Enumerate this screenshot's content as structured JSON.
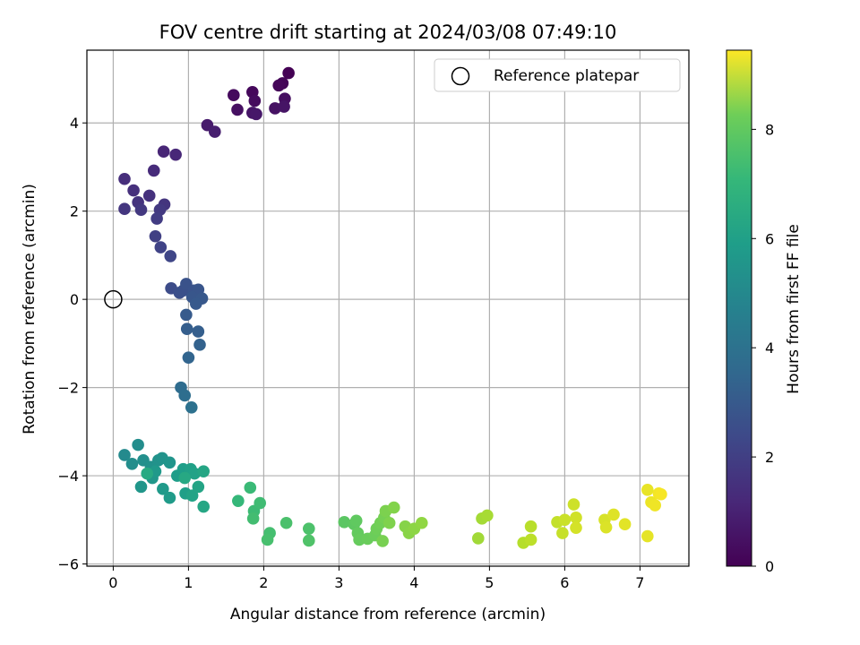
{
  "chart_data": {
    "type": "scatter",
    "title": "FOV centre drift starting at 2024/03/08 07:49:10",
    "xlabel": "Angular distance from reference (arcmin)",
    "ylabel": "Rotation from reference (arcmin)",
    "xlim": [
      -0.35,
      7.65
    ],
    "ylim": [
      -6.05,
      5.65
    ],
    "xticks": [
      0,
      1,
      2,
      3,
      4,
      5,
      6,
      7
    ],
    "xtick_labels": [
      "0",
      "1",
      "2",
      "3",
      "4",
      "5",
      "6",
      "7"
    ],
    "yticks": [
      -6,
      -4,
      -2,
      0,
      2,
      4
    ],
    "ytick_labels": [
      "−6",
      "−4",
      "−2",
      "0",
      "2",
      "4"
    ],
    "grid": true,
    "legend": {
      "position": "top-right",
      "entries": [
        "Reference platepar"
      ]
    },
    "reference_point": {
      "x": 0,
      "y": 0,
      "label": "Reference platepar"
    },
    "colorbar": {
      "label": "Hours from first FF file",
      "range": [
        0,
        9.45
      ],
      "ticks": [
        0,
        2,
        4,
        6,
        8
      ],
      "tick_labels": [
        "0",
        "2",
        "4",
        "6",
        "8"
      ],
      "colormap": "viridis"
    },
    "points": [
      [
        2.33,
        5.13,
        0.0
      ],
      [
        2.25,
        4.9,
        0.1
      ],
      [
        2.2,
        4.85,
        0.15
      ],
      [
        1.85,
        4.7,
        0.2
      ],
      [
        1.6,
        4.63,
        0.25
      ],
      [
        1.88,
        4.5,
        0.3
      ],
      [
        2.28,
        4.55,
        0.35
      ],
      [
        1.65,
        4.3,
        0.4
      ],
      [
        2.15,
        4.33,
        0.45
      ],
      [
        2.27,
        4.37,
        0.5
      ],
      [
        1.85,
        4.23,
        0.55
      ],
      [
        1.9,
        4.2,
        0.6
      ],
      [
        1.25,
        3.95,
        0.7
      ],
      [
        1.35,
        3.8,
        0.8
      ],
      [
        0.67,
        3.35,
        1.0
      ],
      [
        0.83,
        3.28,
        1.05
      ],
      [
        0.54,
        2.92,
        1.15
      ],
      [
        0.15,
        2.73,
        1.25
      ],
      [
        0.27,
        2.47,
        1.3
      ],
      [
        0.48,
        2.35,
        1.35
      ],
      [
        0.33,
        2.2,
        1.4
      ],
      [
        0.68,
        2.15,
        1.45
      ],
      [
        0.15,
        2.05,
        1.5
      ],
      [
        0.37,
        2.03,
        1.55
      ],
      [
        0.62,
        2.03,
        1.6
      ],
      [
        0.58,
        1.83,
        1.7
      ],
      [
        0.56,
        1.43,
        1.8
      ],
      [
        0.63,
        1.18,
        1.9
      ],
      [
        0.76,
        0.98,
        2.0
      ],
      [
        0.77,
        0.25,
        2.2
      ],
      [
        0.88,
        0.15,
        2.3
      ],
      [
        0.93,
        0.2,
        2.35
      ],
      [
        0.97,
        0.35,
        2.4
      ],
      [
        1.07,
        0.2,
        2.45
      ],
      [
        1.13,
        0.22,
        2.5
      ],
      [
        1.05,
        0.05,
        2.55
      ],
      [
        1.18,
        0.02,
        2.6
      ],
      [
        1.1,
        -0.1,
        2.65
      ],
      [
        0.97,
        -0.35,
        2.7
      ],
      [
        0.98,
        -0.67,
        2.8
      ],
      [
        1.13,
        -0.73,
        2.85
      ],
      [
        1.15,
        -1.03,
        2.95
      ],
      [
        1.0,
        -1.32,
        3.05
      ],
      [
        0.9,
        -2.0,
        3.3
      ],
      [
        0.95,
        -2.18,
        3.4
      ],
      [
        1.04,
        -2.45,
        3.5
      ],
      [
        0.15,
        -3.53,
        4.5
      ],
      [
        0.33,
        -3.3,
        4.6
      ],
      [
        0.25,
        -3.73,
        4.65
      ],
      [
        0.4,
        -3.65,
        4.7
      ],
      [
        0.5,
        -3.8,
        4.75
      ],
      [
        0.6,
        -3.65,
        4.8
      ],
      [
        0.65,
        -3.6,
        4.85
      ],
      [
        0.75,
        -3.7,
        4.9
      ],
      [
        0.37,
        -4.25,
        4.95
      ],
      [
        0.52,
        -4.05,
        5.0
      ],
      [
        0.56,
        -3.9,
        5.05
      ],
      [
        0.66,
        -4.3,
        5.1
      ],
      [
        0.75,
        -4.5,
        5.15
      ],
      [
        0.85,
        -4.0,
        5.2
      ],
      [
        0.93,
        -3.85,
        5.25
      ],
      [
        0.96,
        -4.4,
        5.3
      ],
      [
        1.03,
        -3.85,
        5.35
      ],
      [
        1.08,
        -3.95,
        5.4
      ],
      [
        1.05,
        -4.45,
        5.45
      ],
      [
        1.13,
        -4.25,
        5.5
      ],
      [
        1.2,
        -3.9,
        5.55
      ],
      [
        1.2,
        -4.7,
        5.6
      ],
      [
        0.95,
        -4.05,
        5.65
      ],
      [
        0.45,
        -3.95,
        5.7
      ],
      [
        1.66,
        -4.57,
        6.3
      ],
      [
        1.82,
        -4.27,
        6.4
      ],
      [
        1.87,
        -4.8,
        6.45
      ],
      [
        1.95,
        -4.62,
        6.5
      ],
      [
        1.86,
        -4.97,
        6.55
      ],
      [
        2.08,
        -5.3,
        6.6
      ],
      [
        2.05,
        -5.45,
        6.65
      ],
      [
        2.3,
        -5.07,
        6.7
      ],
      [
        2.6,
        -5.2,
        6.75
      ],
      [
        2.6,
        -5.47,
        6.8
      ],
      [
        3.07,
        -5.05,
        7.0
      ],
      [
        3.2,
        -5.1,
        7.05
      ],
      [
        3.23,
        -5.02,
        7.1
      ],
      [
        3.25,
        -5.3,
        7.15
      ],
      [
        3.27,
        -5.45,
        7.2
      ],
      [
        3.38,
        -5.43,
        7.25
      ],
      [
        3.48,
        -5.35,
        7.3
      ],
      [
        3.5,
        -5.2,
        7.35
      ],
      [
        3.55,
        -5.07,
        7.4
      ],
      [
        3.6,
        -4.95,
        7.45
      ],
      [
        3.58,
        -5.48,
        7.5
      ],
      [
        3.62,
        -4.8,
        7.55
      ],
      [
        3.67,
        -5.07,
        7.6
      ],
      [
        3.73,
        -4.72,
        7.65
      ],
      [
        3.88,
        -5.15,
        7.7
      ],
      [
        3.93,
        -5.3,
        7.75
      ],
      [
        4.0,
        -5.2,
        7.8
      ],
      [
        4.1,
        -5.07,
        7.85
      ],
      [
        4.85,
        -5.42,
        8.1
      ],
      [
        4.9,
        -4.97,
        8.15
      ],
      [
        4.97,
        -4.9,
        8.2
      ],
      [
        5.45,
        -5.52,
        8.4
      ],
      [
        5.55,
        -5.15,
        8.45
      ],
      [
        5.55,
        -5.45,
        8.5
      ],
      [
        5.9,
        -5.05,
        8.6
      ],
      [
        5.97,
        -5.3,
        8.65
      ],
      [
        6.0,
        -5.0,
        8.7
      ],
      [
        6.12,
        -4.65,
        8.75
      ],
      [
        6.15,
        -4.95,
        8.8
      ],
      [
        6.15,
        -5.18,
        8.85
      ],
      [
        6.53,
        -5.0,
        8.9
      ],
      [
        6.55,
        -5.17,
        8.95
      ],
      [
        6.65,
        -4.88,
        9.0
      ],
      [
        6.8,
        -5.1,
        9.05
      ],
      [
        7.1,
        -5.37,
        9.1
      ],
      [
        7.1,
        -4.32,
        9.15
      ],
      [
        7.15,
        -4.6,
        9.2
      ],
      [
        7.2,
        -4.67,
        9.25
      ],
      [
        7.25,
        -4.4,
        9.3
      ],
      [
        7.28,
        -4.42,
        9.35
      ]
    ]
  }
}
